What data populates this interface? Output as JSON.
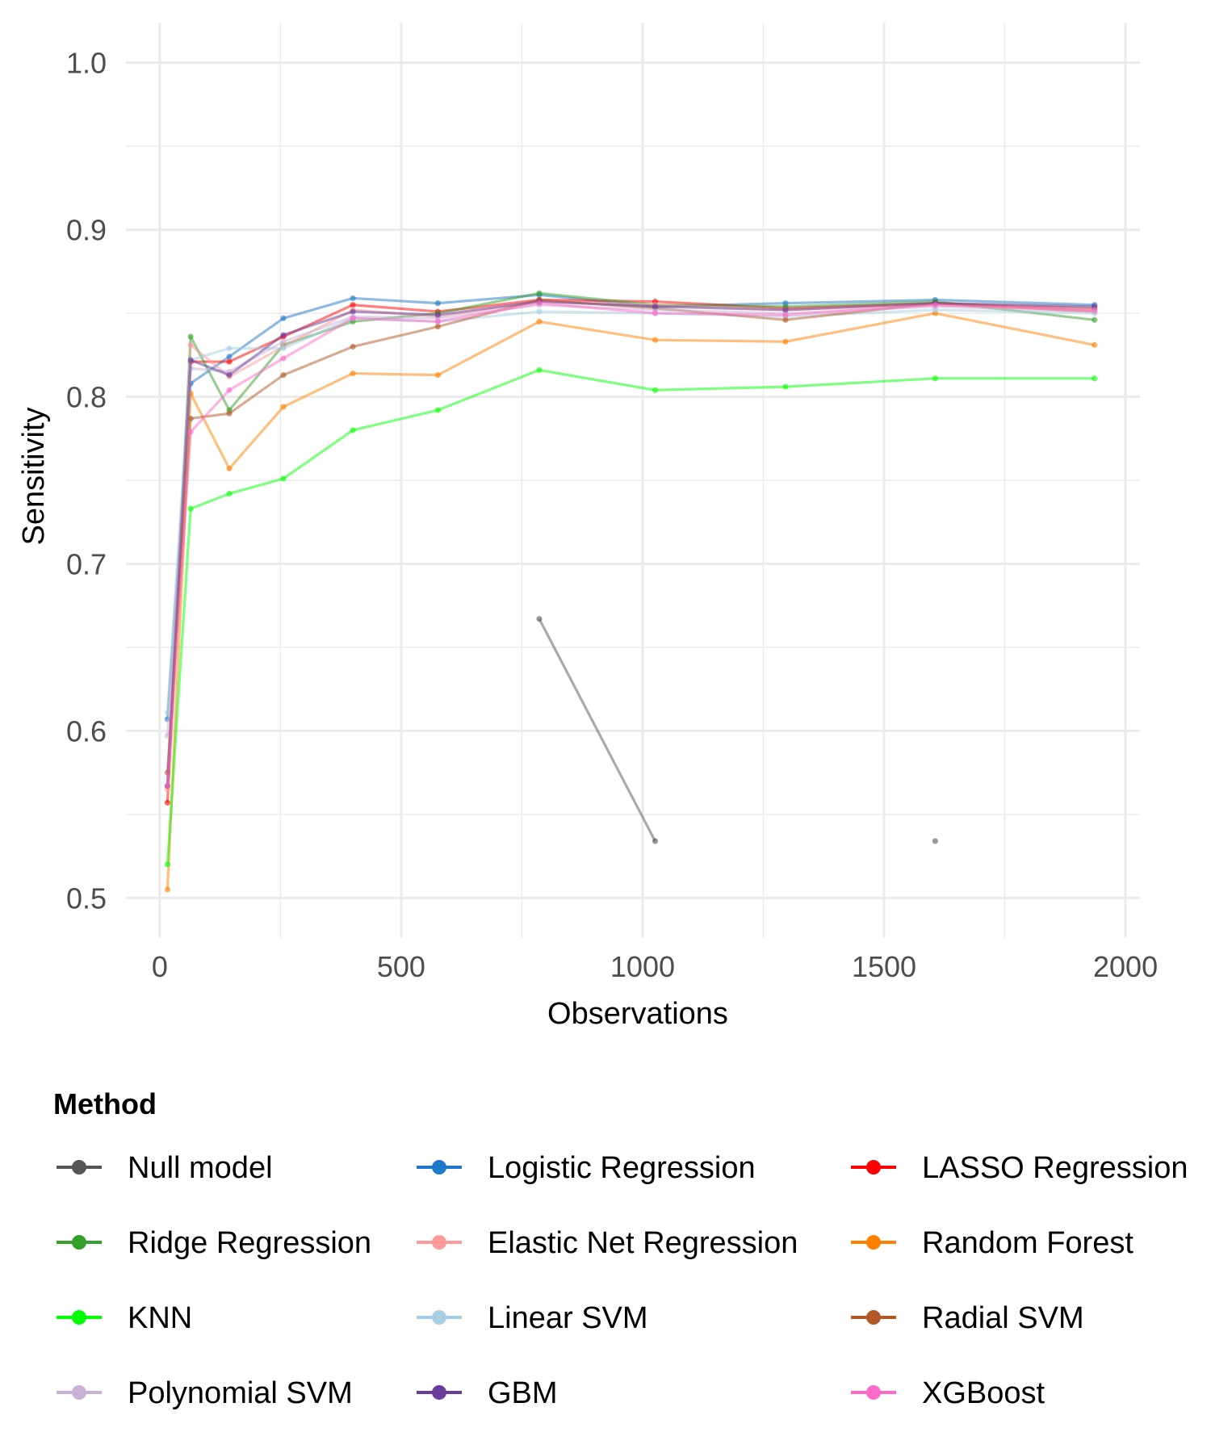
{
  "chart_data": {
    "type": "line",
    "xlabel": "Observations",
    "ylabel": "Sensitivity",
    "xlim": [
      -70,
      2030
    ],
    "ylim": [
      0.476,
      1.024
    ],
    "x_ticks": [
      0,
      500,
      1000,
      1500,
      2000
    ],
    "x_tick_labels": [
      "0",
      "500",
      "1000",
      "1500",
      "2000"
    ],
    "y_ticks": [
      0.5,
      0.6,
      0.7,
      0.8,
      0.9,
      1.0
    ],
    "y_tick_labels": [
      "0.5",
      "0.6",
      "0.7",
      "0.8",
      "0.9",
      "1.0"
    ],
    "grid": true,
    "legend": {
      "title": "Method",
      "position": "bottom",
      "columns": 3
    },
    "series": [
      {
        "name": "Null model",
        "color": "#555555",
        "x": [
          786,
          1026,
          1606
        ],
        "values": [
          0.667,
          0.534,
          0.534
        ],
        "segments": [
          [
            0,
            1
          ],
          [
            2
          ]
        ]
      },
      {
        "name": "Logistic Regression",
        "color": "#1f78c8",
        "x": [
          16,
          64,
          144,
          256,
          400,
          576,
          786,
          1026,
          1296,
          1606,
          1936
        ],
        "values": [
          0.607,
          0.808,
          0.824,
          0.847,
          0.859,
          0.856,
          0.861,
          0.854,
          0.856,
          0.858,
          0.855
        ]
      },
      {
        "name": "LASSO Regression",
        "color": "#ff0000",
        "x": [
          16,
          64,
          144,
          256,
          400,
          576,
          786,
          1026,
          1296,
          1606,
          1936
        ],
        "values": [
          0.557,
          0.821,
          0.821,
          0.836,
          0.855,
          0.851,
          0.858,
          0.857,
          0.853,
          0.856,
          0.851
        ]
      },
      {
        "name": "Ridge Regression",
        "color": "#33a02c",
        "x": [
          16,
          64,
          144,
          256,
          400,
          576,
          786,
          1026,
          1296,
          1606,
          1936
        ],
        "values": [
          0.567,
          0.836,
          0.792,
          0.831,
          0.845,
          0.85,
          0.862,
          0.855,
          0.854,
          0.857,
          0.846
        ]
      },
      {
        "name": "Elastic Net Regression",
        "color": "#fb9a99",
        "x": [
          16,
          64,
          144,
          256,
          400,
          576,
          786,
          1026,
          1296,
          1606,
          1936
        ],
        "values": [
          0.565,
          0.831,
          0.812,
          0.83,
          0.852,
          0.848,
          0.857,
          0.855,
          0.852,
          0.855,
          0.852
        ]
      },
      {
        "name": "Random Forest",
        "color": "#ff7f00",
        "x": [
          16,
          64,
          144,
          256,
          400,
          576,
          786,
          1026,
          1296,
          1606,
          1936
        ],
        "values": [
          0.505,
          0.802,
          0.757,
          0.794,
          0.814,
          0.813,
          0.845,
          0.834,
          0.833,
          0.85,
          0.831
        ]
      },
      {
        "name": "KNN",
        "color": "#00ff00",
        "x": [
          16,
          64,
          144,
          256,
          400,
          576,
          786,
          1026,
          1296,
          1606,
          1936
        ],
        "values": [
          0.52,
          0.733,
          0.742,
          0.751,
          0.78,
          0.792,
          0.816,
          0.804,
          0.806,
          0.811,
          0.811
        ]
      },
      {
        "name": "Linear SVM",
        "color": "#a6cee3",
        "x": [
          16,
          64,
          144,
          256,
          400,
          576,
          786,
          1026,
          1296,
          1606,
          1936
        ],
        "values": [
          0.611,
          0.822,
          0.829,
          0.829,
          0.847,
          0.845,
          0.851,
          0.85,
          0.848,
          0.852,
          0.85
        ]
      },
      {
        "name": "Radial SVM",
        "color": "#b15928",
        "x": [
          16,
          64,
          144,
          256,
          400,
          576,
          786,
          1026,
          1296,
          1606,
          1936
        ],
        "values": [
          0.575,
          0.787,
          0.79,
          0.813,
          0.83,
          0.842,
          0.858,
          0.853,
          0.846,
          0.856,
          0.853
        ]
      },
      {
        "name": "Polynomial SVM",
        "color": "#cab2d6",
        "x": [
          16,
          64,
          144,
          256,
          400,
          576,
          786,
          1026,
          1296,
          1606,
          1936
        ],
        "values": [
          0.597,
          0.817,
          0.815,
          0.833,
          0.848,
          0.847,
          0.855,
          0.852,
          0.85,
          0.854,
          0.851
        ]
      },
      {
        "name": "GBM",
        "color": "#6a3d9a",
        "x": [
          16,
          64,
          144,
          256,
          400,
          576,
          786,
          1026,
          1296,
          1606,
          1936
        ],
        "values": [
          0.567,
          0.822,
          0.813,
          0.837,
          0.851,
          0.849,
          0.857,
          0.854,
          0.852,
          0.856,
          0.854
        ]
      },
      {
        "name": "XGBoost",
        "color": "#ff69c8",
        "x": [
          16,
          64,
          144,
          256,
          400,
          576,
          786,
          1026,
          1296,
          1606,
          1936
        ],
        "values": [
          0.567,
          0.779,
          0.804,
          0.823,
          0.847,
          0.845,
          0.856,
          0.85,
          0.849,
          0.855,
          0.852
        ]
      }
    ]
  }
}
